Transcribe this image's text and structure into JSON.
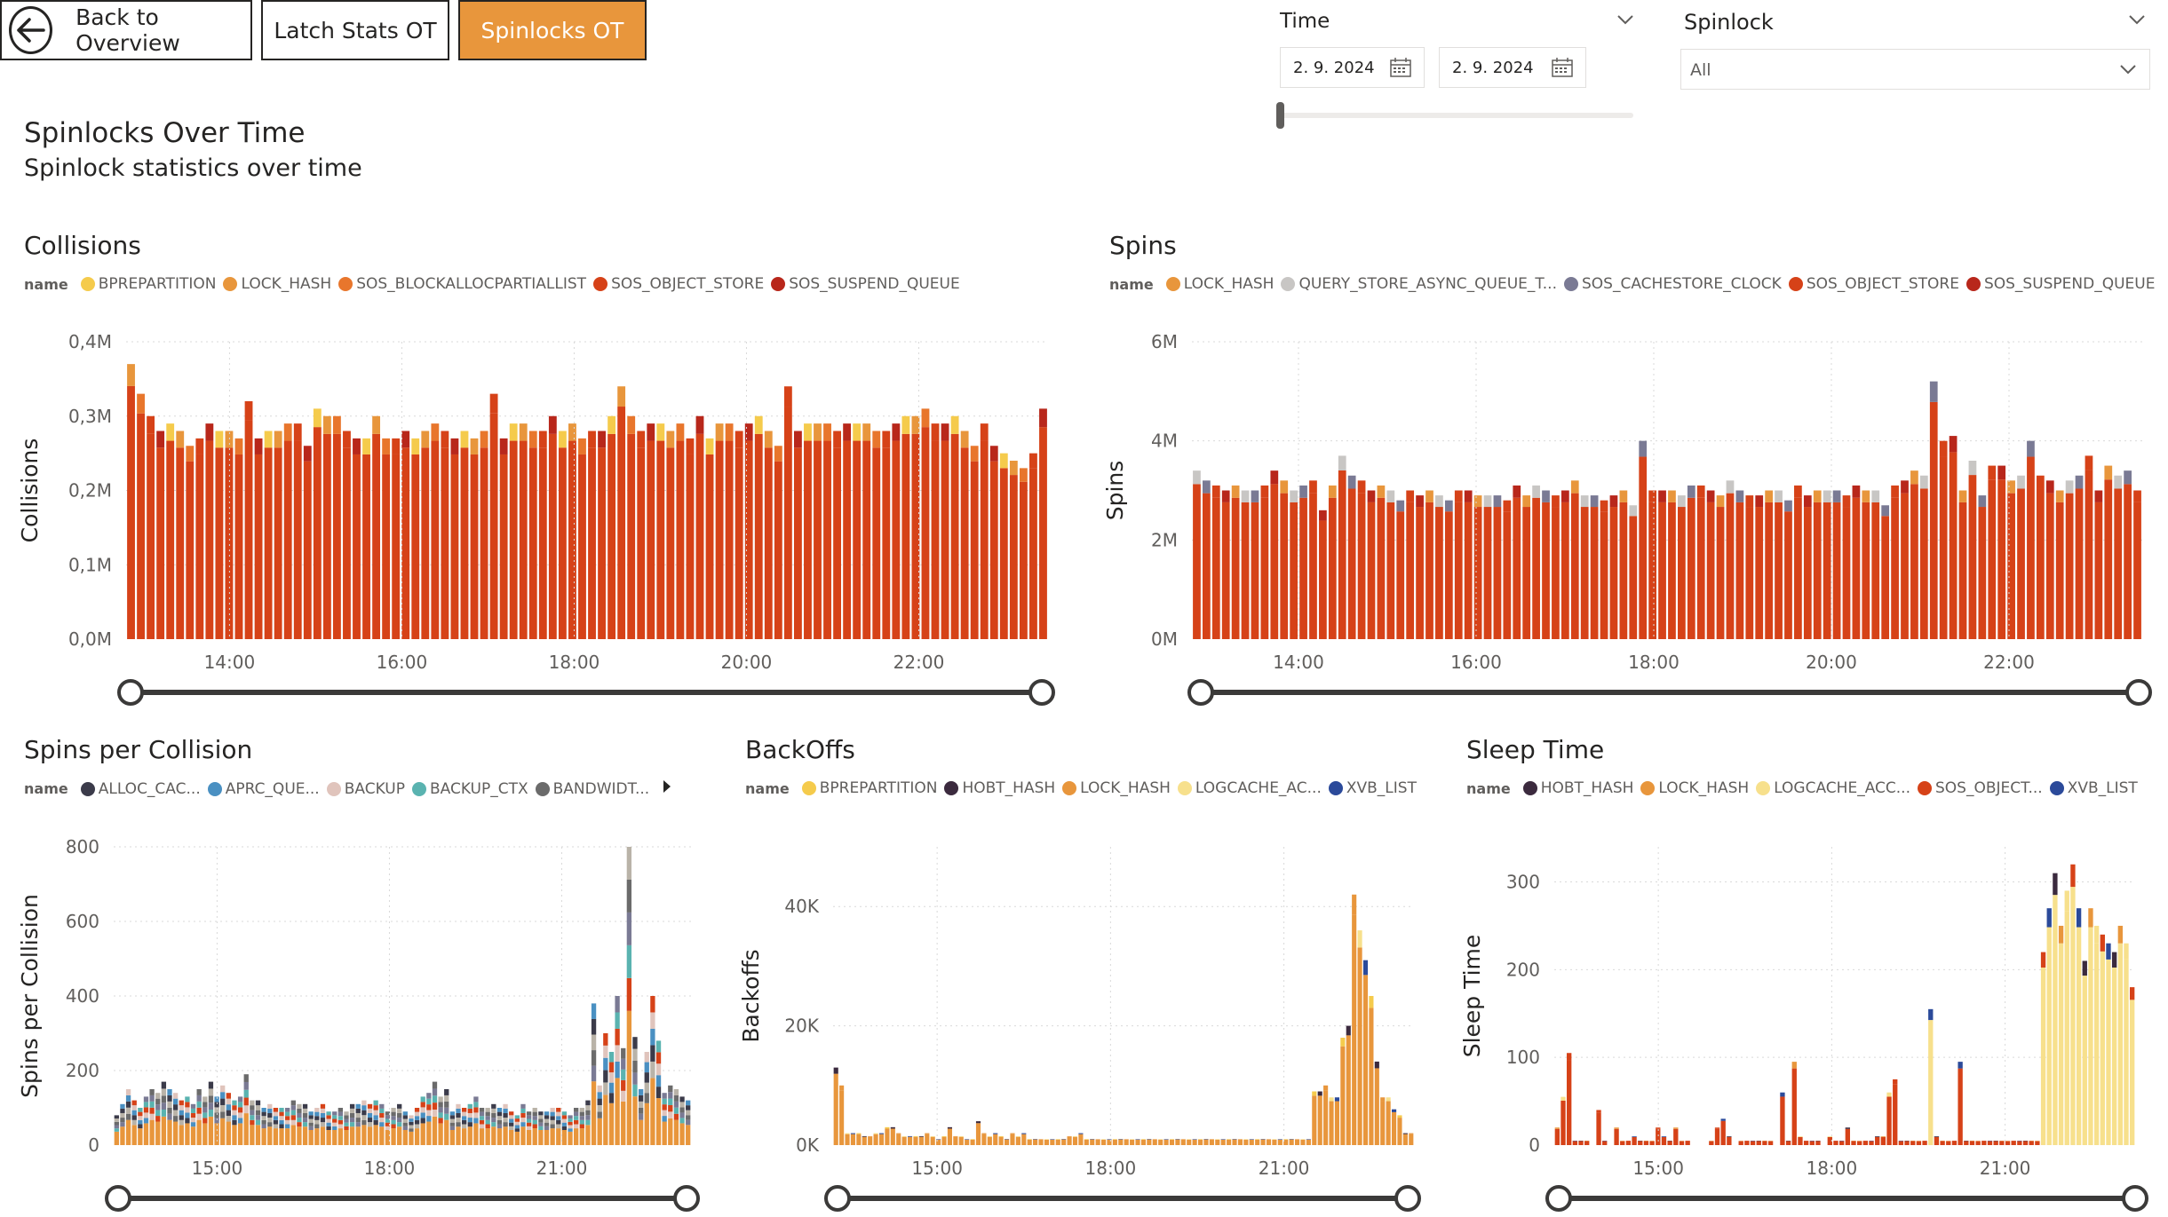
{
  "nav": {
    "back_label": "Back to Overview",
    "latch_label": "Latch Stats OT",
    "spinlocks_label": "Spinlocks OT"
  },
  "header": {
    "title": "Spinlocks Over Time",
    "subtitle": "Spinlock statistics over time"
  },
  "filters": {
    "time_label": "Time",
    "date_from": "2. 9. 2024",
    "date_to": "2. 9. 2024",
    "spinlock_label": "Spinlock",
    "spinlock_value": "All"
  },
  "colors": {
    "accent": "#e8963c",
    "red": "#d64218",
    "darkred": "#b8271b",
    "orange": "#e8963c",
    "yellow": "#f5cb4c",
    "paleyellow": "#f7e08c",
    "grey": "#c8c6c4",
    "slate": "#7a7a94",
    "navy": "#2b4a9a",
    "darkpurple": "#3b2a3e"
  },
  "chart_data": [
    {
      "id": "collisions",
      "type": "bar",
      "title": "Collisions",
      "legend_title": "name",
      "ylabel": "Collisions",
      "ylim": [
        0,
        0.4
      ],
      "yticks": [
        "0,0M",
        "0,1M",
        "0,2M",
        "0,3M",
        "0,4M"
      ],
      "xticks": [
        "14:00",
        "16:00",
        "18:00",
        "20:00",
        "22:00"
      ],
      "series": [
        {
          "name": "BPREPARTITION",
          "color": "#f5cb4c"
        },
        {
          "name": "LOCK_HASH",
          "color": "#e8963c"
        },
        {
          "name": "SOS_BLOCKALLOCPARTIALLIST",
          "color": "#e8762c"
        },
        {
          "name": "SOS_OBJECT_STORE",
          "color": "#d64218"
        },
        {
          "name": "SOS_SUSPEND_QUEUE",
          "color": "#b8271b"
        }
      ],
      "values": [
        0.37,
        0.33,
        0.3,
        0.28,
        0.29,
        0.28,
        0.26,
        0.27,
        0.29,
        0.28,
        0.28,
        0.27,
        0.32,
        0.27,
        0.28,
        0.28,
        0.29,
        0.29,
        0.26,
        0.31,
        0.3,
        0.3,
        0.28,
        0.27,
        0.27,
        0.3,
        0.27,
        0.27,
        0.28,
        0.27,
        0.28,
        0.29,
        0.28,
        0.27,
        0.28,
        0.27,
        0.28,
        0.33,
        0.27,
        0.29,
        0.29,
        0.28,
        0.28,
        0.3,
        0.28,
        0.29,
        0.27,
        0.28,
        0.28,
        0.3,
        0.34,
        0.3,
        0.28,
        0.29,
        0.29,
        0.28,
        0.29,
        0.27,
        0.3,
        0.27,
        0.29,
        0.29,
        0.28,
        0.29,
        0.3,
        0.28,
        0.26,
        0.34,
        0.28,
        0.29,
        0.29,
        0.29,
        0.28,
        0.29,
        0.29,
        0.29,
        0.28,
        0.28,
        0.29,
        0.3,
        0.3,
        0.31,
        0.29,
        0.29,
        0.3,
        0.28,
        0.26,
        0.29,
        0.26,
        0.25,
        0.24,
        0.23,
        0.25,
        0.31
      ]
    },
    {
      "id": "spins",
      "type": "bar",
      "title": "Spins",
      "legend_title": "name",
      "ylabel": "Spins",
      "ylim": [
        0,
        6
      ],
      "yticks": [
        "0M",
        "2M",
        "4M",
        "6M"
      ],
      "xticks": [
        "14:00",
        "16:00",
        "18:00",
        "20:00",
        "22:00"
      ],
      "series": [
        {
          "name": "LOCK_HASH",
          "color": "#e8963c"
        },
        {
          "name": "QUERY_STORE_ASYNC_QUEUE_T...",
          "color": "#c8c6c4"
        },
        {
          "name": "SOS_CACHESTORE_CLOCK",
          "color": "#7a7a94"
        },
        {
          "name": "SOS_OBJECT_STORE",
          "color": "#d64218"
        },
        {
          "name": "SOS_SUSPEND_QUEUE",
          "color": "#b8271b"
        }
      ],
      "values": [
        3.4,
        3.2,
        3.1,
        3.0,
        3.1,
        3.0,
        3.0,
        3.1,
        3.4,
        3.2,
        3.0,
        3.1,
        3.2,
        2.6,
        3.1,
        3.7,
        3.3,
        3.2,
        3.0,
        3.1,
        3.0,
        2.8,
        3.0,
        2.9,
        3.0,
        2.9,
        2.8,
        3.0,
        3.0,
        2.9,
        2.9,
        2.9,
        2.8,
        3.1,
        2.9,
        3.1,
        3.0,
        2.9,
        3.0,
        3.2,
        2.9,
        2.9,
        2.8,
        2.9,
        3.0,
        2.7,
        4.0,
        3.0,
        3.0,
        3.0,
        2.9,
        3.1,
        3.1,
        3.0,
        2.9,
        3.2,
        3.0,
        2.9,
        2.9,
        3.0,
        3.0,
        2.8,
        3.1,
        2.9,
        3.0,
        3.0,
        3.0,
        2.9,
        3.1,
        3.0,
        3.0,
        2.7,
        3.1,
        3.2,
        3.4,
        3.3,
        5.2,
        4.0,
        4.1,
        3.0,
        3.6,
        2.9,
        3.5,
        3.5,
        3.2,
        3.3,
        4.0,
        3.3,
        3.2,
        3.0,
        3.2,
        3.3,
        3.7,
        3.0,
        3.5,
        3.3,
        3.4,
        3.0
      ]
    },
    {
      "id": "spins_per_collision",
      "type": "bar",
      "title": "Spins per Collision",
      "legend_title": "name",
      "ylabel": "Spins per Collision",
      "ylim": [
        0,
        800
      ],
      "yticks": [
        "0",
        "200",
        "400",
        "600",
        "800"
      ],
      "xticks": [
        "15:00",
        "18:00",
        "21:00"
      ],
      "series": [
        {
          "name": "ALLOC_CAC...",
          "color": "#3b3b4a"
        },
        {
          "name": "APRC_QUE...",
          "color": "#4a90c2"
        },
        {
          "name": "BACKUP",
          "color": "#e0c4bc"
        },
        {
          "name": "BACKUP_CTX",
          "color": "#5ab3b0"
        },
        {
          "name": "BANDWIDT...",
          "color": "#6b6b6b"
        }
      ],
      "values": [
        80,
        110,
        150,
        120,
        100,
        130,
        150,
        140,
        170,
        150,
        140,
        120,
        130,
        110,
        150,
        130,
        170,
        130,
        160,
        140,
        120,
        130,
        190,
        120,
        120,
        100,
        110,
        100,
        100,
        100,
        120,
        110,
        110,
        90,
        100,
        110,
        90,
        90,
        100,
        90,
        110,
        110,
        120,
        110,
        120,
        110,
        90,
        100,
        110,
        90,
        80,
        100,
        130,
        140,
        170,
        130,
        150,
        90,
        110,
        100,
        110,
        130,
        100,
        100,
        110,
        100,
        110,
        90,
        80,
        110,
        90,
        100,
        90,
        90,
        100,
        100,
        90,
        80,
        100,
        100,
        120,
        380,
        160,
        300,
        250,
        400,
        260,
        800,
        290,
        150,
        250,
        400,
        280,
        140,
        160,
        150,
        130,
        120
      ]
    },
    {
      "id": "backoffs",
      "type": "bar",
      "title": "BackOffs",
      "legend_title": "name",
      "ylabel": "Backoffs",
      "ylim": [
        0,
        50
      ],
      "yticks": [
        "0K",
        "20K",
        "40K"
      ],
      "xticks": [
        "15:00",
        "18:00",
        "21:00"
      ],
      "series": [
        {
          "name": "BPREPARTITION",
          "color": "#f5cb4c"
        },
        {
          "name": "HOBT_HASH",
          "color": "#3b2a3e"
        },
        {
          "name": "LOCK_HASH",
          "color": "#e8963c"
        },
        {
          "name": "LOGCACHE_AC...",
          "color": "#f7e08c"
        },
        {
          "name": "XVB_LIST",
          "color": "#2b4a9a"
        }
      ],
      "values": [
        13,
        10,
        2,
        2,
        2,
        1.5,
        1.5,
        2,
        2,
        3,
        3,
        2,
        1.5,
        1.5,
        1.5,
        1.5,
        2,
        1.5,
        1,
        1.5,
        3,
        1.5,
        1.5,
        1,
        1,
        4,
        2,
        1.5,
        2,
        1.5,
        1,
        2,
        1.5,
        2,
        1,
        1,
        1,
        1,
        1,
        1,
        1,
        1.5,
        1.5,
        2,
        1,
        1,
        1,
        1,
        1,
        1,
        1,
        1,
        1,
        1,
        1,
        1,
        1,
        1,
        1,
        1,
        1,
        1,
        1,
        1,
        1,
        1,
        1,
        1,
        1,
        1,
        1,
        1,
        1,
        1,
        1,
        1,
        1,
        1,
        1,
        1,
        1,
        1,
        1,
        1,
        9,
        9,
        10,
        8,
        8,
        18,
        20,
        42,
        36,
        31,
        25,
        14,
        8,
        8,
        6,
        5,
        2,
        2
      ]
    },
    {
      "id": "sleep_time",
      "type": "bar",
      "title": "Sleep Time",
      "legend_title": "name",
      "ylabel": "Sleep Time",
      "ylim": [
        0,
        340
      ],
      "yticks": [
        "0",
        "100",
        "200",
        "300"
      ],
      "xticks": [
        "15:00",
        "18:00",
        "21:00"
      ],
      "series": [
        {
          "name": "HOBT_HASH",
          "color": "#3b2a3e"
        },
        {
          "name": "LOCK_HASH",
          "color": "#e8963c"
        },
        {
          "name": "LOGCACHE_ACC...",
          "color": "#f7e08c"
        },
        {
          "name": "SOS_OBJECT...",
          "color": "#d64218"
        },
        {
          "name": "XVB_LIST",
          "color": "#2b4a9a"
        }
      ],
      "values": [
        20,
        55,
        105,
        5,
        5,
        5,
        0,
        40,
        5,
        0,
        20,
        5,
        5,
        10,
        5,
        5,
        5,
        20,
        10,
        5,
        20,
        5,
        5,
        0,
        0,
        0,
        5,
        20,
        30,
        10,
        0,
        5,
        5,
        5,
        5,
        5,
        5,
        0,
        60,
        5,
        95,
        10,
        5,
        5,
        5,
        0,
        10,
        5,
        5,
        20,
        5,
        5,
        5,
        5,
        10,
        10,
        60,
        75,
        5,
        5,
        5,
        5,
        5,
        155,
        10,
        5,
        5,
        5,
        95,
        5,
        5,
        5,
        5,
        5,
        5,
        5,
        5,
        5,
        5,
        5,
        5,
        5,
        220,
        270,
        310,
        250,
        290,
        320,
        270,
        210,
        270,
        250,
        240,
        230,
        220,
        250,
        230,
        180
      ]
    }
  ]
}
